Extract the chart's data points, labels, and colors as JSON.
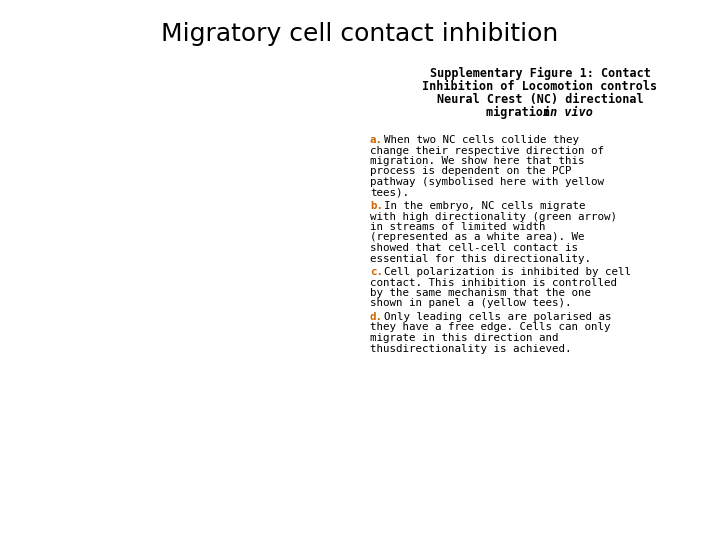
{
  "title": "Migratory cell contact inhibition",
  "title_fontsize": 18,
  "background_color": "#ffffff",
  "subtitle_lines": [
    "Supplementary Figure 1: Contact",
    "Inhibition of Locomotion controls",
    "Neural Crest (NC) directional",
    "migration "
  ],
  "subtitle_italic": "in vivo",
  "subtitle_fontsize": 8.5,
  "body_fontsize": 7.8,
  "label_color": "#cc6600",
  "para_a_first": "When two NC cells collide they",
  "para_a_rest": [
    "change their respective direction of",
    "migration. We show here that this",
    "process is dependent on the PCP",
    "pathway (symbolised here with yellow",
    "tees)."
  ],
  "para_b_first": "In the embryo, NC cells migrate",
  "para_b_rest": [
    "with high directionality (green arrow)",
    "in streams of limited width",
    "(represented as a white area). We",
    "showed that cell-cell contact is",
    "essential for this directionality."
  ],
  "para_c_first": "Cell polarization is inhibited by cell",
  "para_c_rest": [
    "contact. This inhibition is controlled",
    "by the same mechanism that the one",
    "shown in panel a (yellow tees)."
  ],
  "para_d_first": "Only leading cells are polarised as",
  "para_d_rest": [
    "they have a free edge. Cells can only",
    "migrate in this direction and",
    "thusdirectionality is achieved."
  ]
}
